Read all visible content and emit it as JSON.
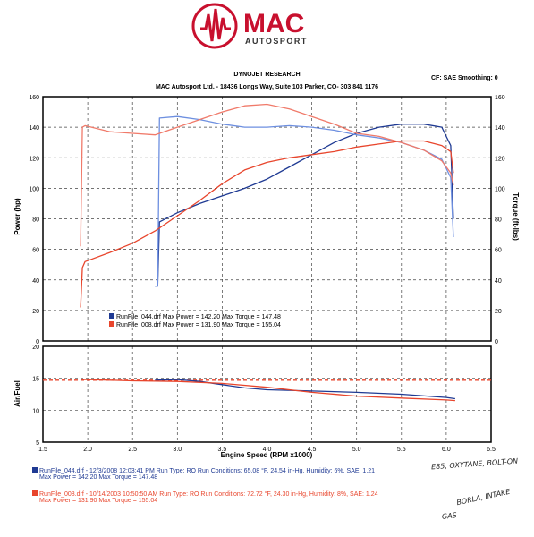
{
  "logo": {
    "brand": "MAC",
    "sub": "AUTOSPORT"
  },
  "header": {
    "title": "DYNOJET RESEARCH",
    "subtitle": "MAC Autosport Ltd. - 18436 Longs Way, Suite 103 Parker, CO- 303 841 1176",
    "cf": "CF: SAE  Smoothing: 0"
  },
  "colors": {
    "blue": "#1f3a93",
    "red": "#e8452c",
    "light_blue": "#6d8fe0",
    "light_red": "#f07a6a",
    "afr_ref": "#e8452c"
  },
  "chart_data": [
    {
      "type": "line",
      "name": "power-torque",
      "xlim": [
        1.5,
        6.5
      ],
      "x_ticks": [
        1.5,
        2.0,
        2.5,
        3.0,
        3.5,
        4.0,
        4.5,
        5.0,
        5.5,
        6.0,
        6.5
      ],
      "ylabel": "Power (hp)",
      "ylim": [
        0,
        160
      ],
      "y_ticks": [
        0,
        20,
        40,
        60,
        80,
        100,
        120,
        140,
        160
      ],
      "y2label": "Torque (ft-lbs)",
      "y2lim": [
        0,
        160
      ],
      "y2_ticks": [
        0,
        20,
        40,
        60,
        80,
        100,
        120,
        140,
        160
      ],
      "grid": true,
      "legend": [
        "RunFile_044.drf Max Power = 142.20    Max Torque = 147.48",
        "RunFile_008.drf Max Power = 131.90    Max Torque = 155.04"
      ],
      "series": [
        {
          "name": "RunFile_044.drf",
          "kind": "power",
          "color": "#1f3a93",
          "x": [
            2.75,
            2.78,
            2.8,
            3.0,
            3.25,
            3.5,
            3.75,
            4.0,
            4.25,
            4.5,
            4.75,
            5.0,
            5.25,
            5.5,
            5.75,
            5.95,
            6.05,
            6.08
          ],
          "y": [
            36,
            36,
            78,
            84,
            90,
            95,
            100,
            106,
            114,
            122,
            130,
            136,
            140,
            142,
            142,
            140,
            128,
            80
          ]
        },
        {
          "name": "RunFile_044.drf",
          "kind": "torque",
          "color": "#6d8fe0",
          "x": [
            2.75,
            2.78,
            2.8,
            3.0,
            3.25,
            3.5,
            3.75,
            4.0,
            4.25,
            4.5,
            4.75,
            5.0,
            5.25,
            5.5,
            5.75,
            5.95,
            6.05,
            6.08
          ],
          "y": [
            36,
            36,
            146,
            147,
            145,
            142,
            140,
            140,
            141,
            140,
            138,
            135,
            133,
            130,
            125,
            119,
            107,
            68
          ]
        },
        {
          "name": "RunFile_008.drf",
          "kind": "power",
          "color": "#e8452c",
          "x": [
            1.92,
            1.94,
            1.97,
            2.25,
            2.5,
            2.75,
            3.0,
            3.25,
            3.5,
            3.75,
            4.0,
            4.25,
            4.5,
            4.75,
            5.0,
            5.25,
            5.5,
            5.75,
            5.95,
            6.05,
            6.08
          ],
          "y": [
            22,
            48,
            52,
            58,
            64,
            72,
            82,
            92,
            103,
            112,
            117,
            120,
            122,
            124,
            127,
            129,
            131,
            131,
            128,
            124,
            110
          ]
        },
        {
          "name": "RunFile_008.drf",
          "kind": "torque",
          "color": "#f07a6a",
          "x": [
            1.92,
            1.94,
            1.97,
            2.25,
            2.5,
            2.75,
            3.0,
            3.25,
            3.5,
            3.75,
            4.0,
            4.25,
            4.5,
            4.75,
            5.0,
            5.25,
            5.5,
            5.75,
            5.95,
            6.05,
            6.08
          ],
          "y": [
            62,
            140,
            141,
            137,
            136,
            135,
            140,
            145,
            150,
            154,
            155,
            152,
            147,
            142,
            136,
            134,
            130,
            125,
            118,
            110,
            102
          ]
        }
      ]
    },
    {
      "type": "line",
      "name": "air-fuel",
      "xlabel": "Engine Speed (RPM x1000)",
      "xlim": [
        1.5,
        6.5
      ],
      "x_ticks": [
        1.5,
        2.0,
        2.5,
        3.0,
        3.5,
        4.0,
        4.5,
        5.0,
        5.5,
        6.0,
        6.5
      ],
      "ylabel": "Air/Fuel",
      "ylim": [
        5,
        20
      ],
      "y_ticks": [
        5,
        10,
        15,
        20
      ],
      "grid": true,
      "reference_line": 14.7,
      "series": [
        {
          "name": "RunFile_044.drf",
          "color": "#1f3a93",
          "x": [
            2.75,
            3.0,
            3.25,
            3.5,
            3.75,
            4.0,
            4.5,
            5.0,
            5.5,
            6.0,
            6.1
          ],
          "y": [
            14.7,
            14.8,
            14.5,
            14.0,
            13.5,
            13.2,
            13.0,
            12.8,
            12.5,
            12.0,
            11.8
          ]
        },
        {
          "name": "RunFile_008.drf",
          "color": "#e8452c",
          "x": [
            1.92,
            2.0,
            2.5,
            3.0,
            3.5,
            4.0,
            4.5,
            5.0,
            5.5,
            6.0,
            6.1
          ],
          "y": [
            14.8,
            14.8,
            14.6,
            14.5,
            14.2,
            13.6,
            12.8,
            12.2,
            11.9,
            11.6,
            11.5
          ]
        }
      ]
    }
  ],
  "footer": {
    "run1_line1": "RunFile_044.drf - 12/3/2008 12:03:41 PM  Run Type: RO  Run Conditions: 65.08 °F, 24.54 in-Hg,  Humidity:  6%, SAE: 1.21",
    "run1_line2": "Max Power = 142.20   Max Torque = 147.48",
    "run2_line1": "RunFile_008.drf - 10/14/2003 10:50:50 AM  Run Type: RO  Run Conditions: 72.72 °F, 24.30 in-Hg,  Humidity:  8%, SAE: 1.24",
    "run2_line2": "Max Power = 131.90   Max Torque = 155.04"
  },
  "handwriting": {
    "note1": "E85, OXYTANE, BOLT-ON",
    "note2": "BORLA, INTAKE",
    "note3": "GAS"
  }
}
